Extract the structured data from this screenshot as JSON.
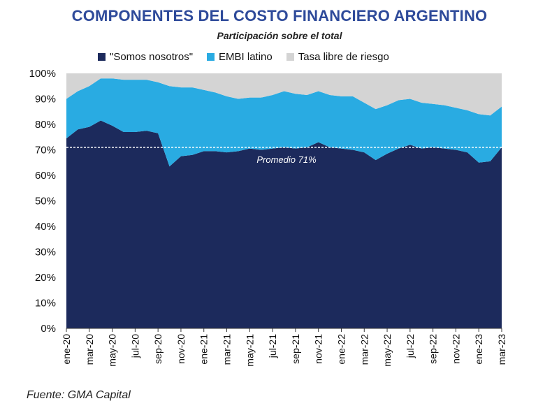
{
  "chart_data": {
    "type": "area",
    "stacked": true,
    "title": "COMPONENTES DEL COSTO FINANCIERO ARGENTINO",
    "subtitle": "Participación sobre el total",
    "ylabel": "",
    "xlabel": "",
    "ylim": [
      0,
      100
    ],
    "y_ticks": [
      "0%",
      "10%",
      "20%",
      "30%",
      "40%",
      "50%",
      "60%",
      "70%",
      "80%",
      "90%",
      "100%"
    ],
    "x_tick_labels": [
      "ene-20",
      "mar-20",
      "may-20",
      "jul-20",
      "sep-20",
      "nov-20",
      "ene-21",
      "mar-21",
      "may-21",
      "jul-21",
      "sep-21",
      "nov-21",
      "ene-22",
      "mar-22",
      "may-22",
      "jul-22",
      "sep-22",
      "nov-22",
      "ene-23",
      "mar-23"
    ],
    "series": [
      {
        "name": "\"Somos nosotros\"",
        "color": "#1c2a5c",
        "values": [
          74.5,
          78,
          79,
          81.5,
          79.5,
          77,
          77,
          77.5,
          76.5,
          63.5,
          67.5,
          68,
          69.5,
          69.5,
          69,
          69.5,
          70.5,
          70,
          70.5,
          71,
          70.5,
          71,
          73,
          71,
          70.5,
          70,
          69,
          66,
          68.5,
          70.5,
          72,
          70.5,
          71,
          70.5,
          70,
          69,
          65,
          65.5,
          71
        ]
      },
      {
        "name": "EMBI latino",
        "color": "#29abe2",
        "values": [
          15.5,
          15,
          16,
          16.5,
          18.5,
          20.5,
          20.5,
          20,
          20,
          31.5,
          27,
          26.5,
          24,
          23,
          22,
          20.5,
          20,
          20.5,
          21,
          22,
          21.5,
          20.5,
          20,
          20.5,
          20.5,
          21,
          19.5,
          20,
          19,
          19,
          18,
          18,
          17,
          17,
          16.5,
          16.5,
          19,
          18,
          16
        ]
      },
      {
        "name": "Tasa libre de riesgo",
        "color": "#d4d4d4",
        "values": [
          10,
          7,
          5,
          2,
          2,
          2.5,
          2.5,
          2.5,
          3.5,
          5,
          5.5,
          5.5,
          6.5,
          7.5,
          9,
          10,
          9.5,
          9.5,
          8.5,
          7,
          8,
          8.5,
          7,
          8.5,
          9,
          9,
          11.5,
          14,
          12.5,
          10.5,
          10,
          11.5,
          12,
          12.5,
          13.5,
          14.5,
          16,
          16.5,
          13
        ]
      }
    ],
    "reference_line": {
      "value": 71,
      "label": "Promedio 71%"
    }
  },
  "source": "Fuente: GMA Capital"
}
